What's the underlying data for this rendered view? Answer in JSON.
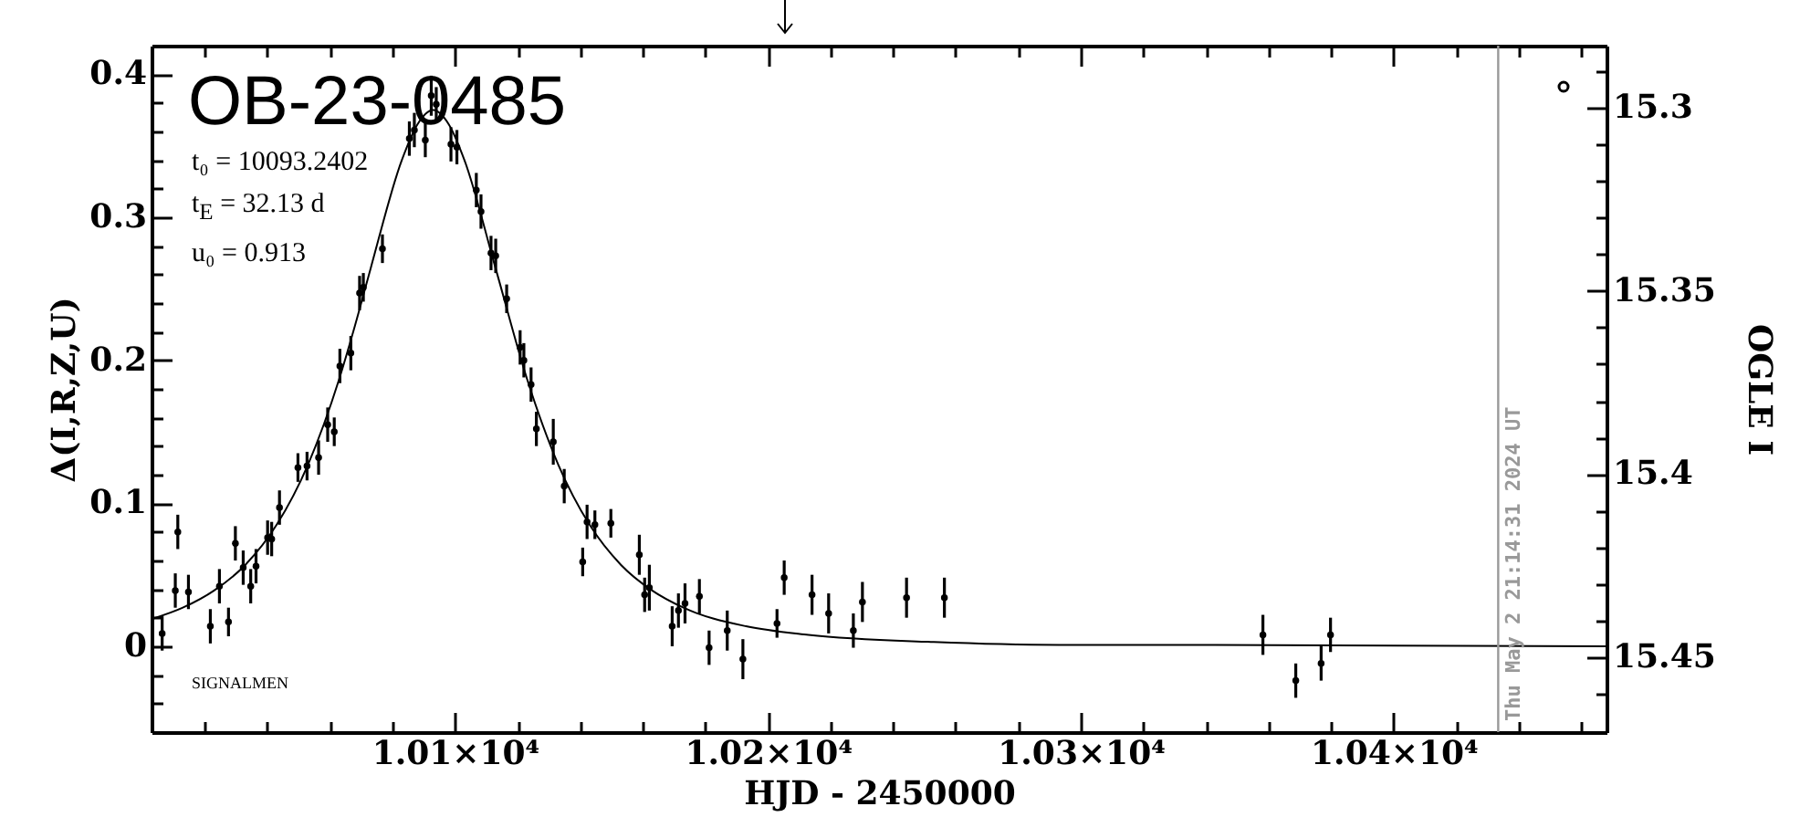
{
  "chart_data": {
    "type": "scatter",
    "title": "OB-23-0485",
    "xlabel": "HJD - 2450000",
    "ylabel": "Δ(I,R,Z,U)",
    "y2label": "OGLE I",
    "annotations": [
      "t₀ = 10093.2402",
      "t$_{E}$ = 32.13 d",
      "u₀ = 0.913",
      "SIGNALMEN",
      "Thu May  2 21:14:31 2024 UT"
    ],
    "xlim": [
      10003,
      10468
    ],
    "ylim": [
      -0.06,
      0.42
    ],
    "y2lim": [
      15.4705,
      15.283
    ],
    "xticks": [
      {
        "value": 10020,
        "label": null
      },
      {
        "value": 10040,
        "label": null
      },
      {
        "value": 10060,
        "label": null
      },
      {
        "value": 10080,
        "label": null
      },
      {
        "value": 10100,
        "label": "1.01×10⁴"
      },
      {
        "value": 10120,
        "label": null
      },
      {
        "value": 10140,
        "label": null
      },
      {
        "value": 10160,
        "label": null
      },
      {
        "value": 10180,
        "label": null
      },
      {
        "value": 10200,
        "label": "1.02×10⁴"
      },
      {
        "value": 10220,
        "label": null
      },
      {
        "value": 10240,
        "label": null
      },
      {
        "value": 10260,
        "label": null
      },
      {
        "value": 10280,
        "label": null
      },
      {
        "value": 10300,
        "label": "1.03×10⁴"
      },
      {
        "value": 10320,
        "label": null
      },
      {
        "value": 10340,
        "label": null
      },
      {
        "value": 10360,
        "label": null
      },
      {
        "value": 10380,
        "label": null
      },
      {
        "value": 10400,
        "label": "1.04×10⁴"
      },
      {
        "value": 10420,
        "label": null
      },
      {
        "value": 10440,
        "label": null
      },
      {
        "value": 10460,
        "label": null
      }
    ],
    "yticks": [
      {
        "value": -0.04,
        "label": null
      },
      {
        "value": -0.02,
        "label": null
      },
      0,
      {
        "value": 0.02,
        "label": null
      },
      {
        "value": 0.04,
        "label": null
      },
      {
        "value": 0.06,
        "label": null
      },
      {
        "value": 0.08,
        "label": null
      },
      0.1,
      {
        "value": 0.12,
        "label": null
      },
      {
        "value": 0.14,
        "label": null
      },
      {
        "value": 0.16,
        "label": null
      },
      {
        "value": 0.18,
        "label": null
      },
      0.2,
      {
        "value": 0.22,
        "label": null
      },
      {
        "value": 0.24,
        "label": null
      },
      {
        "value": 0.26,
        "label": null
      },
      {
        "value": 0.28,
        "label": null
      },
      0.3,
      {
        "value": 0.32,
        "label": null
      },
      {
        "value": 0.34,
        "label": null
      },
      {
        "value": 0.36,
        "label": null
      },
      {
        "value": 0.38,
        "label": null
      },
      0.4
    ],
    "y2ticks": [
      {
        "value": 15.29,
        "label": null
      },
      15.3,
      {
        "value": 15.31,
        "label": null
      },
      {
        "value": 15.32,
        "label": null
      },
      {
        "value": 15.33,
        "label": null
      },
      {
        "value": 15.34,
        "label": null
      },
      15.35,
      {
        "value": 15.36,
        "label": null
      },
      {
        "value": 15.37,
        "label": null
      },
      {
        "value": 15.38,
        "label": null
      },
      {
        "value": 15.39,
        "label": null
      },
      15.4,
      {
        "value": 15.41,
        "label": null
      },
      {
        "value": 15.42,
        "label": null
      },
      {
        "value": 15.43,
        "label": null
      },
      {
        "value": 15.44,
        "label": null
      },
      15.45,
      {
        "value": 15.46,
        "label": null
      }
    ],
    "marker": "circle",
    "grid": false,
    "ref_lines": [
      {
        "axis": "x",
        "value": 10433.39,
        "color": "#999999"
      }
    ],
    "series": [
      {
        "color": "#000000",
        "x": [
          10006.4,
          10010.6,
          10011.4,
          10014.8,
          10021.8,
          10024.7,
          10027.6,
          10029.8,
          10032.3,
          10034.7,
          10036.4,
          10040.1,
          10041.4,
          10043.9,
          10049.8,
          10052.7,
          10056.4,
          10059.3,
          10061.4,
          10063.2,
          10066.7,
          10069.5,
          10070.7,
          10076.8,
          10085.4,
          10087.0,
          10090.5,
          10092.4,
          10094.0,
          10098.7,
          10100.6,
          10106.8,
          10108.3,
          10111.5,
          10113.0,
          10116.5,
          10120.8,
          10122.0,
          10124.3,
          10126.0,
          10131.4,
          10134.9,
          10140.8,
          10142.2,
          10144.7,
          10149.8,
          10158.9,
          10160.6,
          10162.1,
          10169.4,
          10171.4,
          10173.5,
          10178.1,
          10181.2,
          10187.0,
          10192.0,
          10202.9,
          10205.2,
          10214.1,
          10219.4,
          10227.3,
          10230.2,
          10244.3,
          10256.4,
          10358.2,
          10368.7,
          10376.8,
          10379.8
        ],
        "values": [
          0.009,
          0.039,
          0.08,
          0.038,
          0.014,
          0.042,
          0.017,
          0.072,
          0.055,
          0.042,
          0.056,
          0.076,
          0.075,
          0.097,
          0.125,
          0.126,
          0.132,
          0.155,
          0.15,
          0.196,
          0.205,
          0.247,
          0.251,
          0.278,
          0.355,
          0.361,
          0.354,
          0.385,
          0.379,
          0.351,
          0.349,
          0.319,
          0.304,
          0.275,
          0.273,
          0.243,
          0.209,
          0.2,
          0.183,
          0.152,
          0.143,
          0.112,
          0.059,
          0.087,
          0.085,
          0.086,
          0.064,
          0.036,
          0.041,
          0.014,
          0.025,
          0.03,
          0.035,
          -0.001,
          0.011,
          -0.009,
          0.016,
          0.048,
          0.036,
          0.023,
          0.011,
          0.031,
          0.034,
          0.034,
          0.008,
          -0.024,
          -0.012,
          0.008
        ],
        "errors": [
          0.012,
          0.012,
          0.012,
          0.012,
          0.012,
          0.012,
          0.01,
          0.012,
          0.012,
          0.012,
          0.012,
          0.012,
          0.012,
          0.012,
          0.01,
          0.01,
          0.012,
          0.012,
          0.01,
          0.012,
          0.012,
          0.012,
          0.01,
          0.01,
          0.012,
          0.012,
          0.012,
          0.014,
          0.012,
          0.012,
          0.012,
          0.012,
          0.012,
          0.012,
          0.012,
          0.01,
          0.012,
          0.012,
          0.012,
          0.012,
          0.016,
          0.012,
          0.01,
          0.012,
          0.01,
          0.01,
          0.014,
          0.012,
          0.016,
          0.014,
          0.012,
          0.014,
          0.012,
          0.012,
          0.014,
          0.014,
          0.01,
          0.012,
          0.014,
          0.014,
          0.012,
          0.014,
          0.014,
          0.014,
          0.014,
          0.012,
          0.012,
          0.012
        ]
      },
      {
        "type": "line",
        "marker": "none",
        "color": "#000000",
        "x": [
          10003,
          10013,
          10023,
          10033,
          10043,
          10053,
          10063,
          10068,
          10073,
          10083,
          10088,
          10093,
          10098,
          10103,
          10113,
          10123,
          10133,
          10143,
          10153,
          10163,
          10173,
          10193,
          10213,
          10253,
          10293,
          10343,
          10468
        ],
        "values": [
          0.019,
          0.027,
          0.039,
          0.057,
          0.085,
          0.127,
          0.187,
          0.224,
          0.264,
          0.34,
          0.365,
          0.375,
          0.365,
          0.34,
          0.264,
          0.187,
          0.127,
          0.085,
          0.057,
          0.039,
          0.027,
          0.014,
          0.008,
          0.003,
          0.001,
          0.001,
          0
        ]
      }
    ]
  }
}
